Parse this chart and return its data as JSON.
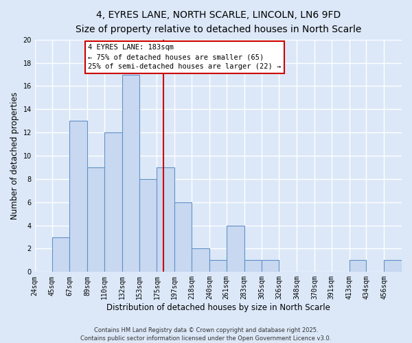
{
  "title": "4, EYRES LANE, NORTH SCARLE, LINCOLN, LN6 9FD",
  "subtitle": "Size of property relative to detached houses in North Scarle",
  "xlabel": "Distribution of detached houses by size in North Scarle",
  "ylabel": "Number of detached properties",
  "bin_labels": [
    "24sqm",
    "45sqm",
    "67sqm",
    "89sqm",
    "110sqm",
    "132sqm",
    "153sqm",
    "175sqm",
    "197sqm",
    "218sqm",
    "240sqm",
    "261sqm",
    "283sqm",
    "305sqm",
    "326sqm",
    "348sqm",
    "370sqm",
    "391sqm",
    "413sqm",
    "434sqm",
    "456sqm"
  ],
  "bin_edges": [
    24,
    45,
    67,
    89,
    110,
    132,
    153,
    175,
    197,
    218,
    240,
    261,
    283,
    305,
    326,
    348,
    370,
    391,
    413,
    434,
    456,
    478
  ],
  "counts": [
    0,
    3,
    13,
    9,
    12,
    17,
    8,
    9,
    6,
    2,
    1,
    4,
    1,
    1,
    0,
    0,
    0,
    0,
    1,
    0,
    1
  ],
  "ylim": [
    0,
    20
  ],
  "yticks": [
    0,
    2,
    4,
    6,
    8,
    10,
    12,
    14,
    16,
    18,
    20
  ],
  "bar_color": "#c8d8f0",
  "bar_edge_color": "#6090c8",
  "property_line_x": 183,
  "annotation_title": "4 EYRES LANE: 183sqm",
  "annotation_line1": "← 75% of detached houses are smaller (65)",
  "annotation_line2": "25% of semi-detached houses are larger (22) →",
  "annotation_box_color": "#ffffff",
  "annotation_box_edge": "#cc0000",
  "line_color": "#cc0000",
  "background_color": "#dce8f8",
  "plot_bg_color": "#dce8f8",
  "footer1": "Contains HM Land Registry data © Crown copyright and database right 2025.",
  "footer2": "Contains public sector information licensed under the Open Government Licence v3.0.",
  "title_fontsize": 10,
  "subtitle_fontsize": 9,
  "axis_label_fontsize": 8.5,
  "tick_fontsize": 7,
  "annotation_fontsize": 7.5,
  "footer_fontsize": 6
}
